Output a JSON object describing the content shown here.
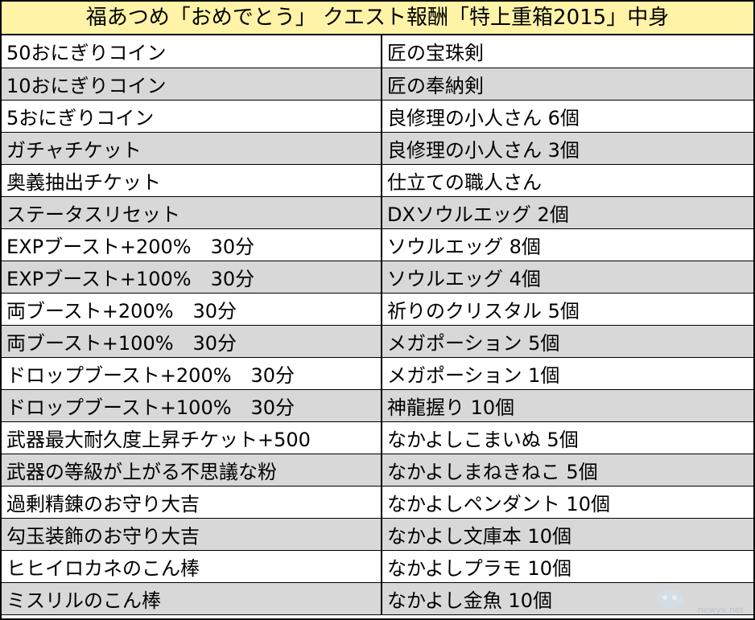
{
  "title": "福あつめ「おめでとう」 クエスト報酬「特上重箱2015」中身",
  "rows": [
    {
      "left": "50おにぎりコイン",
      "right": "匠の宝珠剣"
    },
    {
      "left": "10おにぎりコイン",
      "right": "匠の奉納剣"
    },
    {
      "left": "5おにぎりコイン",
      "right": "良修理の小人さん 6個"
    },
    {
      "left": "ガチャチケット",
      "right": "良修理の小人さん 3個"
    },
    {
      "left": "奥義抽出チケット",
      "right": "仕立ての職人さん"
    },
    {
      "left": "ステータスリセット",
      "right": "DXソウルエッグ 2個"
    },
    {
      "left": "EXPブースト+200%　30分",
      "right": "ソウルエッグ 8個"
    },
    {
      "left": "EXPブースト+100%　30分",
      "right": "ソウルエッグ 4個"
    },
    {
      "left": "両ブースト+200%　30分",
      "right": "祈りのクリスタル 5個"
    },
    {
      "left": "両ブースト+100%　30分",
      "right": "メガポーション 5個"
    },
    {
      "left": "ドロップブースト+200%　30分",
      "right": "メガポーション 1個"
    },
    {
      "left": "ドロップブースト+100%　30分",
      "right": "神龍握り 10個"
    },
    {
      "left": "武器最大耐久度上昇チケット+500",
      "right": "なかよしこまいぬ 5個"
    },
    {
      "left": "武器の等級が上がる不思議な粉",
      "right": "なかよしまねきねこ 5個"
    },
    {
      "left": "過剰精錬のお守り大吉",
      "right": "なかよしペンダント 10個"
    },
    {
      "left": "勾玉装飾のお守り大吉",
      "right": "なかよし文庫本 10個"
    },
    {
      "left": "ヒヒイロカネのこん棒",
      "right": "なかよしプラモ 10個"
    },
    {
      "left": "ミスリルのこん棒",
      "right": "なかよし金魚 10個"
    }
  ],
  "watermark": {
    "text": "newyx.net",
    "icon": "mascot-logo-icon"
  }
}
